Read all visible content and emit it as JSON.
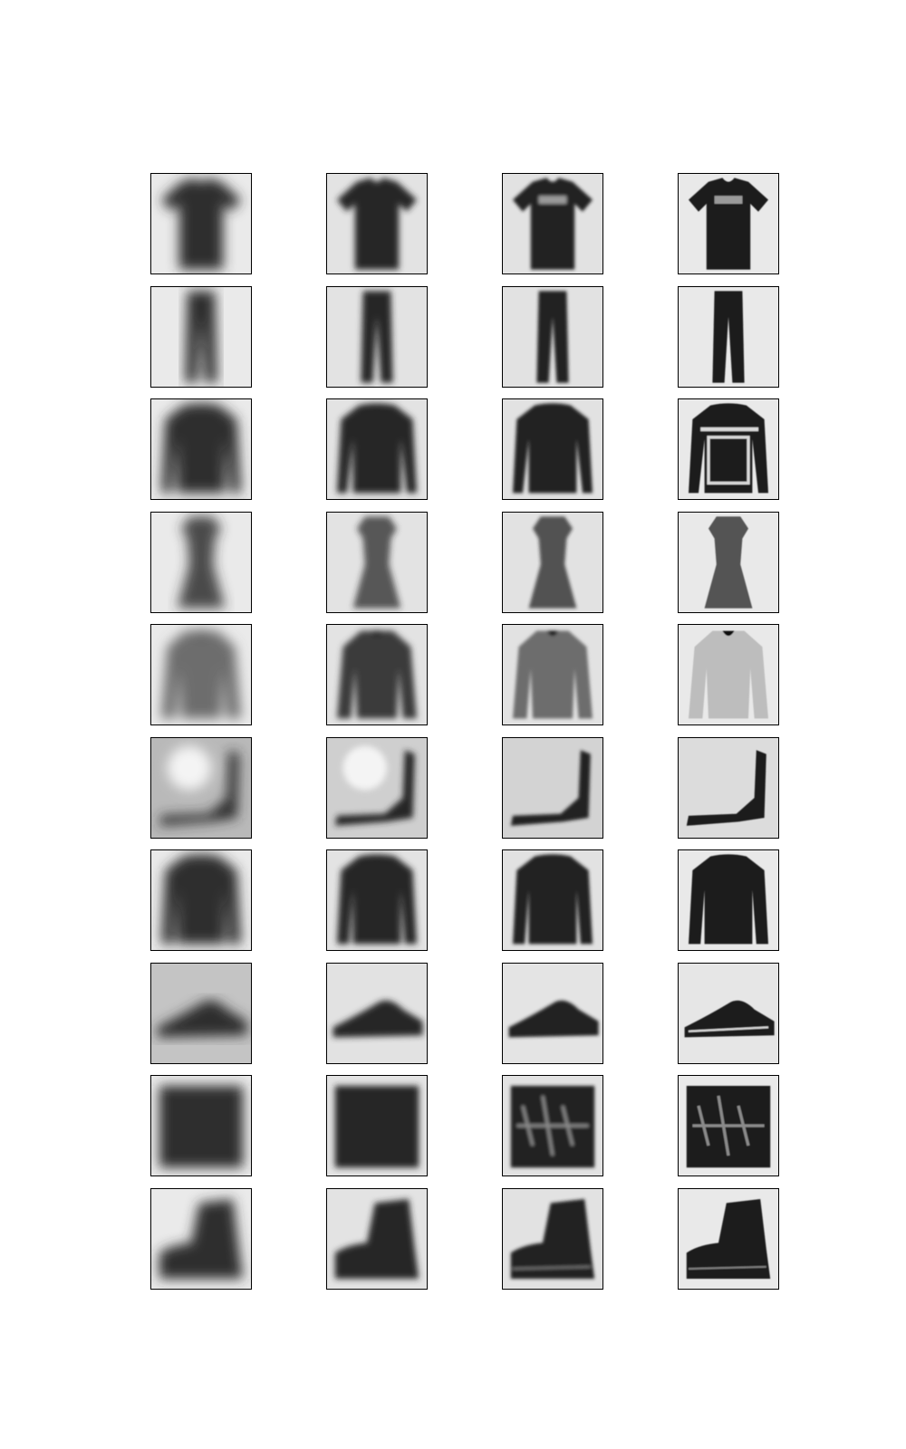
{
  "figure": {
    "background": "#ffffff",
    "frame_color": "#000000",
    "grid": {
      "rows": 10,
      "cols": 4
    },
    "row_items": [
      "tshirt",
      "trouser",
      "pullover",
      "dress",
      "coat",
      "sandal",
      "shirt",
      "sneaker",
      "bag",
      "ankle-boot"
    ],
    "column_sharpness": [
      0,
      1,
      2,
      3
    ]
  }
}
